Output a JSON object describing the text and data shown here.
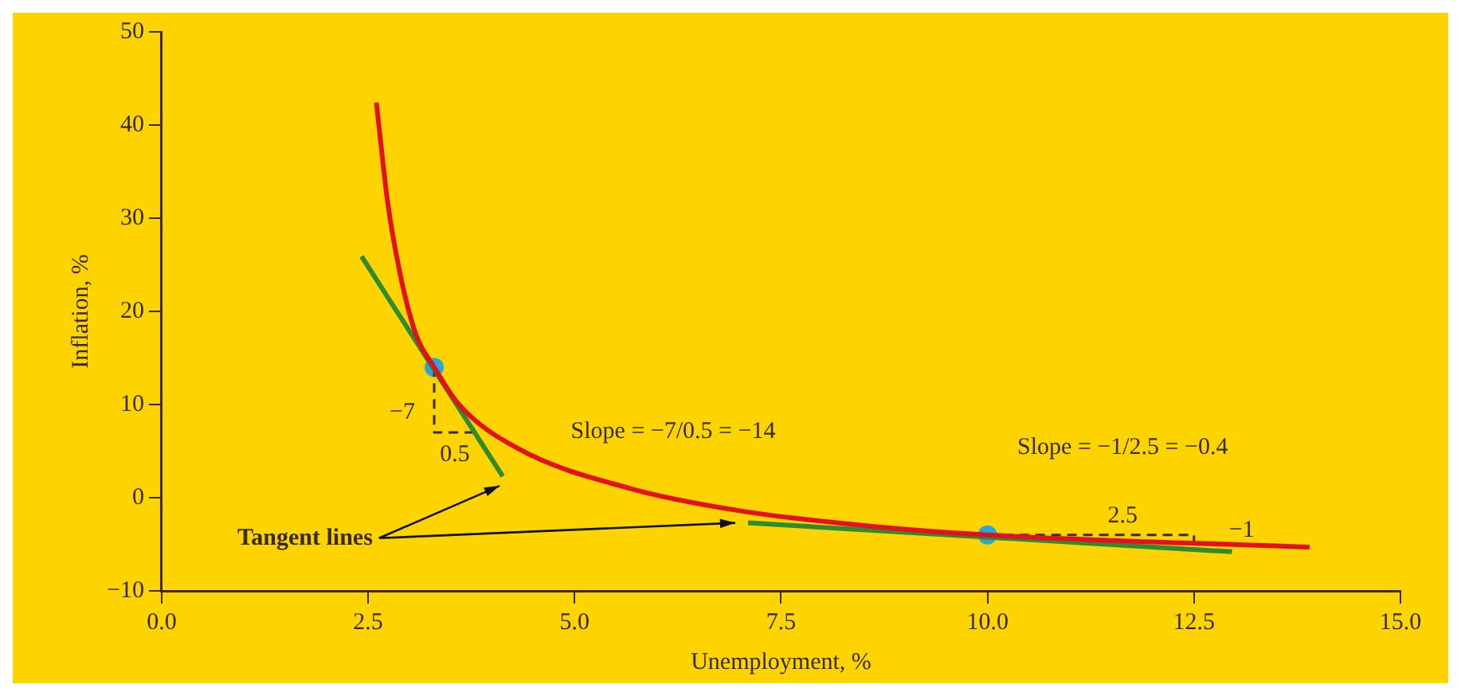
{
  "chart_data": {
    "type": "line",
    "xlabel": "Unemployment, %",
    "ylabel": "Inflation, %",
    "xlim": [
      0,
      15
    ],
    "xticks": [
      {
        "value": 0,
        "label": "0.0"
      },
      2.5,
      {
        "value": 5,
        "label": "5.0"
      },
      7.5,
      {
        "value": 10,
        "label": "10.0"
      },
      12.5,
      {
        "value": 15,
        "label": "15.0"
      }
    ],
    "ylim": [
      -10,
      50
    ],
    "yticks": [
      -10,
      0,
      10,
      20,
      30,
      40,
      50
    ],
    "grid": false,
    "legend": false,
    "marker": "none",
    "series": [
      {
        "type": "line",
        "color": "#e3101e",
        "x": [
          2.6,
          2.74,
          2.9,
          3.08,
          3.3,
          3.59,
          4.31,
          5.67,
          7.0,
          8.63,
          10,
          13.9
        ],
        "values": [
          42.4,
          31.5,
          23.5,
          17.5,
          14,
          10.1,
          5.3,
          1.0,
          -1.4,
          -3.1,
          -4,
          -5.3
        ]
      },
      {
        "type": "line",
        "color": "#2e8b2e",
        "x": [
          2.42,
          4.13
        ],
        "values": [
          25.9,
          2.3
        ]
      },
      {
        "type": "line",
        "color": "#2e8b2e",
        "x": [
          7.1,
          12.96
        ],
        "values": [
          -2.7,
          -5.8
        ]
      },
      {
        "type": "line",
        "color": "#3a2a10",
        "line_style": "dashed",
        "x": [
          3.3,
          3.3,
          3.8
        ],
        "values": [
          14,
          7,
          7
        ]
      },
      {
        "type": "line",
        "color": "#3a2a10",
        "line_style": "dashed",
        "x": [
          10,
          12.5,
          12.5
        ],
        "values": [
          -4,
          -4,
          -5
        ]
      },
      {
        "type": "scatter",
        "color": "#27a8d8",
        "marker": "circle",
        "x": [
          3.3,
          10
        ],
        "values": [
          14,
          -4
        ]
      }
    ],
    "annotations": [
      "Slope = −7/0.5 = −14",
      "Slope = −1/2.5 = −0.4",
      "−7",
      "0.5",
      "2.5",
      "−1",
      "Tangent lines"
    ]
  }
}
